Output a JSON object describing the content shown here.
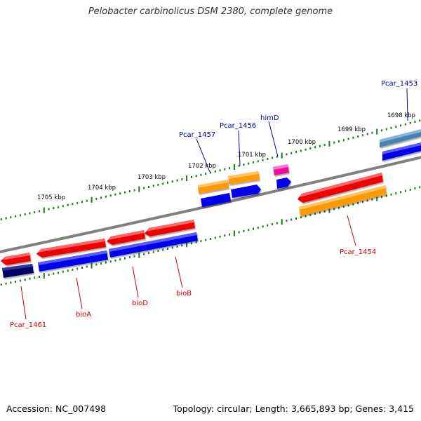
{
  "title": "Pelobacter carbinolicus DSM 2380, complete genome",
  "footer": {
    "accession": "Accession: NC_007498",
    "stats": "Topology: circular; Length: 3,665,893 bp; Genes: 3,415"
  },
  "scale_labels": [
    "1698 kbp",
    "1699 kbp",
    "1700 kbp",
    "1701 kbp",
    "1702 kbp",
    "1703 kbp",
    "1704 kbp",
    "1705 kbp"
  ],
  "gene_labels": [
    {
      "text": "Pcar_1453",
      "color": "#0000aa"
    },
    {
      "text": "himD",
      "color": "#0000aa"
    },
    {
      "text": "Pcar_1456",
      "color": "#0000aa"
    },
    {
      "text": "Pcar_1457",
      "color": "#0000aa"
    },
    {
      "text": "Pcar_1454",
      "color": "#cc0000"
    },
    {
      "text": "bioB",
      "color": "#cc0000"
    },
    {
      "text": "bioD",
      "color": "#cc0000"
    },
    {
      "text": "bioA",
      "color": "#cc0000"
    },
    {
      "text": "Pcar_1461",
      "color": "#cc0000"
    }
  ],
  "colors": {
    "backbone": "#808080",
    "tick": "#1a7a1a",
    "red": "#ee0000",
    "blue": "#0000ee",
    "orange": "#ff9900",
    "magenta": "#ee1199",
    "navy": "#000066",
    "steel": "#4682b4"
  }
}
